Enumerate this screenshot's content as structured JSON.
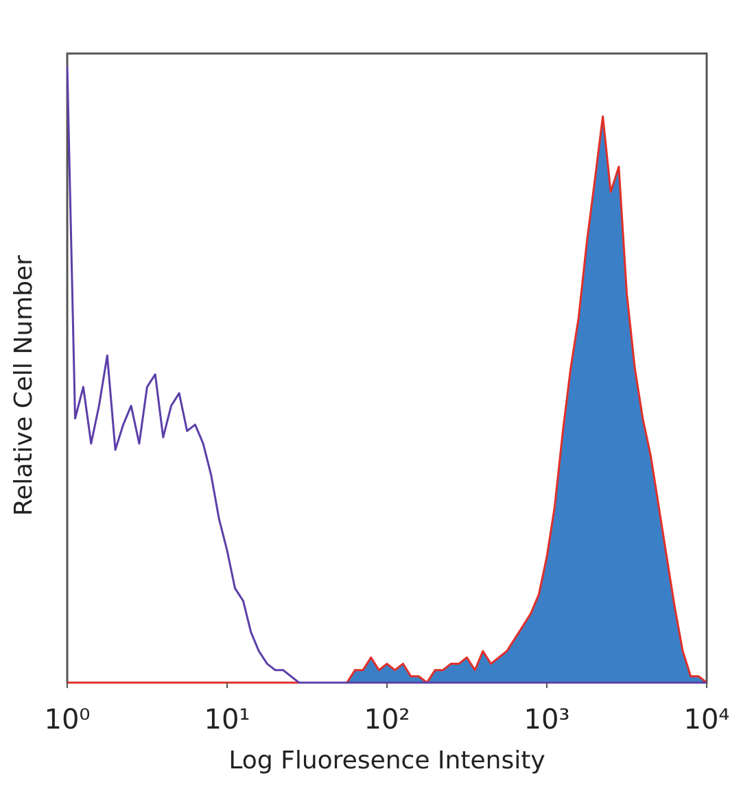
{
  "chart_data": {
    "type": "histogram",
    "x_label": "Log Fluoresence Intensity",
    "y_label": "Relative Cell Number",
    "xscale": "log",
    "xlim": [
      1,
      10000
    ],
    "ylim": [
      0,
      100
    ],
    "xticks": [
      {
        "value": 1,
        "label": "10⁰"
      },
      {
        "value": 10,
        "label": "10¹"
      },
      {
        "value": 100,
        "label": "10²"
      },
      {
        "value": 1000,
        "label": "10³"
      },
      {
        "value": 10000,
        "label": "10⁴"
      }
    ],
    "grid": false,
    "x": [
      1,
      1.12,
      1.26,
      1.41,
      1.58,
      1.78,
      2,
      2.24,
      2.51,
      2.82,
      3.16,
      3.55,
      3.98,
      4.47,
      5.01,
      5.62,
      6.31,
      7.08,
      7.94,
      8.91,
      10,
      11.2,
      12.6,
      14.1,
      15.8,
      17.8,
      20,
      22.4,
      25.1,
      28.2,
      31.6,
      35.5,
      39.8,
      44.7,
      50.1,
      56.2,
      63.1,
      70.8,
      79.4,
      89.1,
      100,
      112,
      126,
      141,
      158,
      178,
      200,
      224,
      251,
      282,
      316,
      355,
      398,
      447,
      501,
      562,
      631,
      708,
      794,
      891,
      1000,
      1120,
      1260,
      1410,
      1580,
      1780,
      2000,
      2240,
      2510,
      2820,
      3160,
      3550,
      3980,
      4470,
      5010,
      5620,
      6310,
      7080,
      7940,
      8910,
      10000
    ],
    "series": [
      {
        "color": "#3b80c6",
        "edge_color": "#e0302a",
        "fill": true,
        "values": [
          0,
          0,
          0,
          0,
          0,
          0,
          0,
          0,
          0,
          0,
          0,
          0,
          0,
          0,
          0,
          0,
          0,
          0,
          0,
          0,
          0,
          0,
          0,
          0,
          0,
          0,
          0,
          0,
          0,
          0,
          0,
          0,
          0,
          0,
          0,
          0,
          2,
          2,
          4,
          2,
          3,
          2,
          3,
          1,
          1,
          0,
          2,
          2,
          3,
          3,
          4,
          2,
          5,
          3,
          4,
          5,
          7,
          9,
          11,
          14,
          20,
          28,
          40,
          50,
          58,
          70,
          80,
          90,
          78,
          82,
          62,
          50,
          42,
          36,
          28,
          20,
          12,
          5,
          1,
          1,
          0
        ]
      },
      {
        "color": "#5b3fa8",
        "fill": false,
        "values": [
          98,
          42,
          47,
          38,
          44,
          52,
          37,
          41,
          44,
          38,
          47,
          49,
          39,
          44,
          46,
          40,
          41,
          38,
          33,
          26,
          21,
          15,
          13,
          8,
          5,
          3,
          2,
          2,
          1,
          0,
          0,
          0,
          0,
          0,
          0,
          0,
          0,
          0,
          0,
          0,
          0,
          0,
          0,
          0,
          0,
          0,
          0,
          0,
          0,
          0,
          0,
          0,
          0,
          0,
          0,
          0,
          0,
          0,
          0,
          0,
          0,
          0,
          0,
          0,
          0,
          0,
          0,
          0,
          0,
          0,
          0,
          0,
          0,
          0,
          0,
          0,
          0,
          0,
          0,
          0,
          0
        ]
      }
    ]
  }
}
